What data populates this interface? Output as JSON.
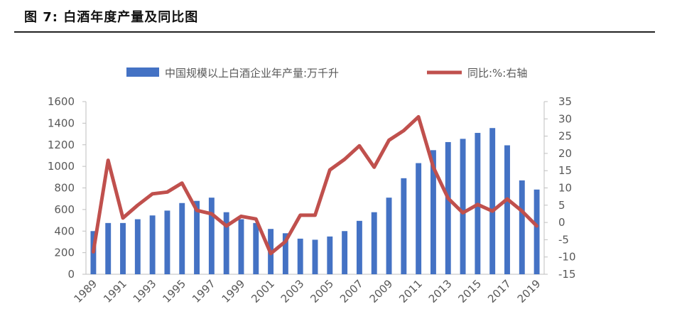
{
  "figure_title": "图  7:  白酒年度产量及同比图",
  "chart_data": {
    "type": "bar",
    "title": "",
    "colors": {
      "bar": "#4472C4",
      "line": "#C0504D"
    },
    "legend_position": "top-center",
    "grid": false,
    "categories": [
      1989,
      1990,
      1991,
      1992,
      1993,
      1994,
      1995,
      1996,
      1997,
      1998,
      1999,
      2000,
      2001,
      2002,
      2003,
      2004,
      2005,
      2006,
      2007,
      2008,
      2009,
      2010,
      2011,
      2012,
      2013,
      2014,
      2015,
      2016,
      2017,
      2018,
      2019
    ],
    "x_tick_labels": [
      "1989",
      "1991",
      "1993",
      "1995",
      "1997",
      "1999",
      "2001",
      "2003",
      "2005",
      "2007",
      "2009",
      "2011",
      "2013",
      "2015",
      "2017",
      "2019"
    ],
    "y_left": {
      "ylim": [
        0,
        1600
      ],
      "ticks": [
        "0",
        "200",
        "400",
        "600",
        "800",
        "1000",
        "1200",
        "1400",
        "1600"
      ]
    },
    "y_right": {
      "ylim": [
        -15,
        35
      ],
      "ticks": [
        "-15",
        "-10",
        "-5",
        "0",
        "5",
        "10",
        "15",
        "20",
        "25",
        "30",
        "35"
      ]
    },
    "series": [
      {
        "name": "中国规模以上白酒企业年产量:万千升",
        "type": "bar",
        "axis": "left",
        "values": [
          400,
          475,
          475,
          510,
          545,
          590,
          660,
          680,
          710,
          575,
          510,
          475,
          420,
          380,
          330,
          320,
          350,
          400,
          495,
          575,
          710,
          890,
          1030,
          1150,
          1225,
          1255,
          1310,
          1355,
          1195,
          870,
          785
        ]
      },
      {
        "name": "同比:%:右轴",
        "type": "line",
        "axis": "right",
        "values": [
          -8.5,
          18,
          1.3,
          5,
          8.3,
          8.8,
          11.4,
          3.5,
          2.5,
          -1,
          1.8,
          1,
          -9,
          -5.5,
          2.1,
          2.1,
          15.2,
          18.3,
          22.2,
          16,
          23.8,
          26.6,
          30.6,
          16,
          7,
          2.8,
          5.2,
          3.3,
          6.8,
          3.3,
          -1
        ]
      }
    ]
  }
}
